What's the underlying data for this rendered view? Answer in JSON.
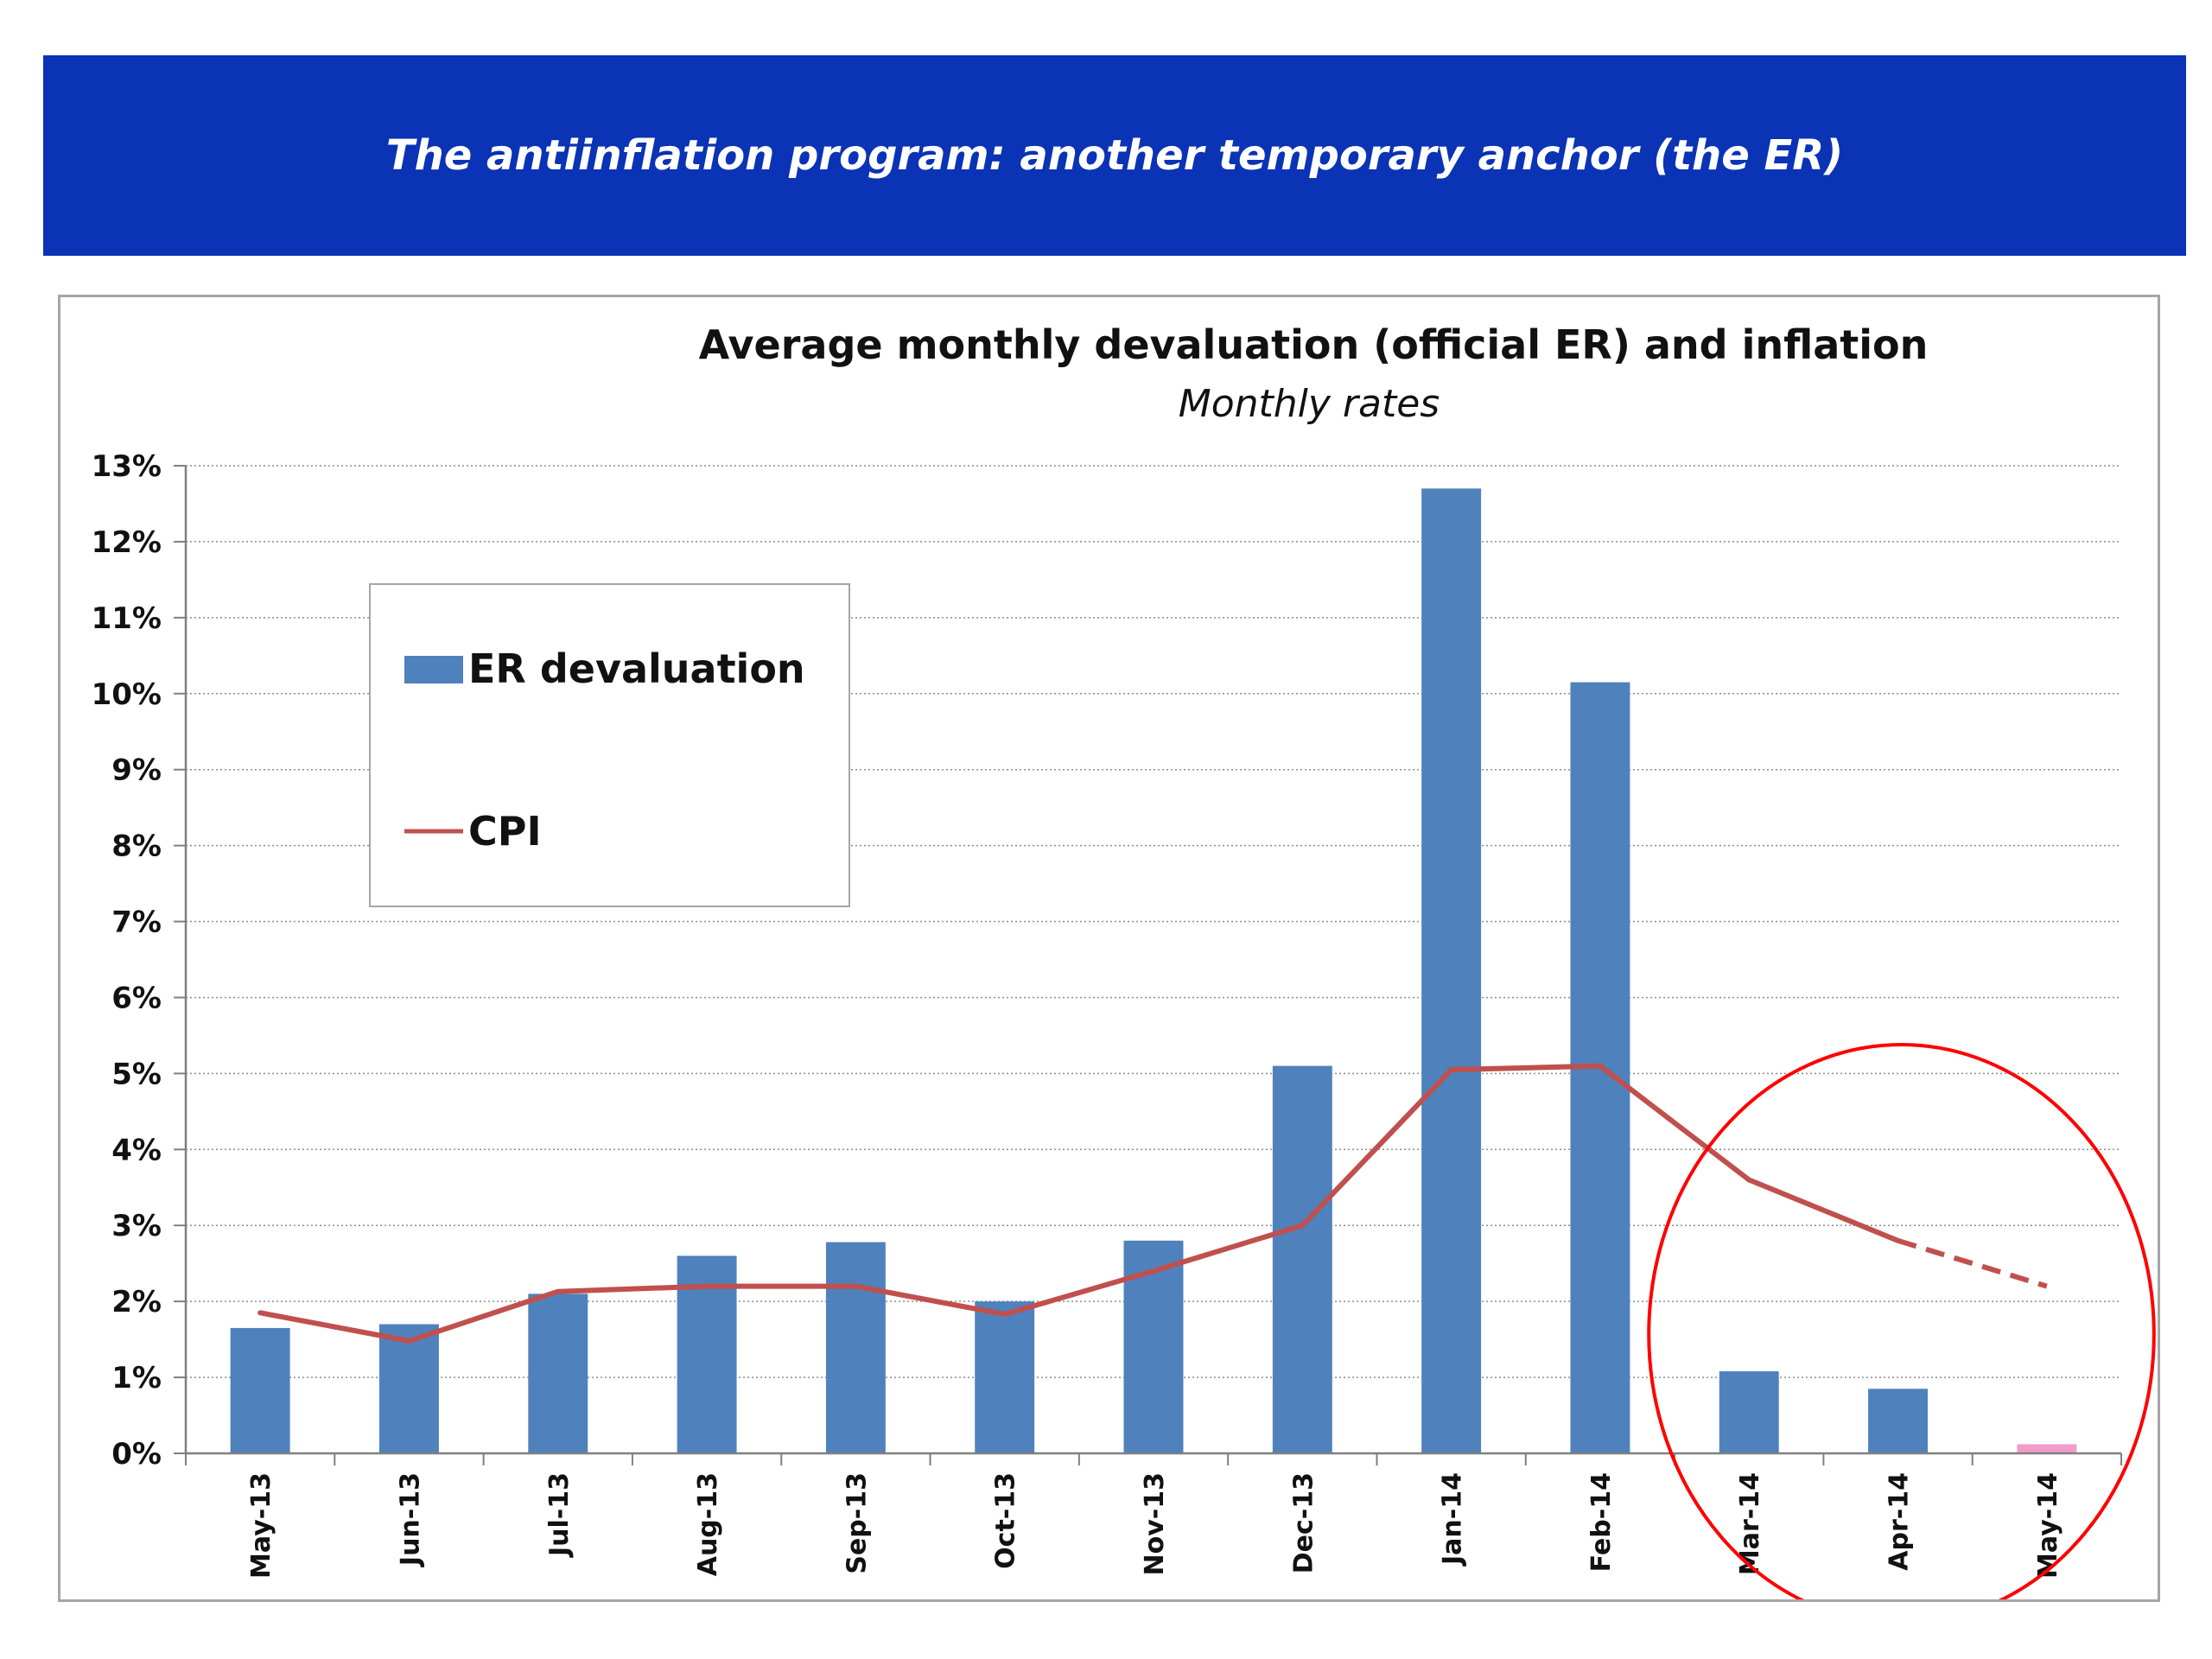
{
  "banner": {
    "title": "The antiinflation program: another temporary  anchor (the ER)",
    "background_color": "#0a33b5",
    "text_color": "#ffffff"
  },
  "chart_data": {
    "type": "bar",
    "title": "Average monthly devaluation (official ER) and inflation",
    "subtitle": "Monthly rates",
    "xlabel": "",
    "ylabel": "",
    "ylim": [
      0,
      0.13
    ],
    "y_ticks": [
      "0%",
      "1%",
      "2%",
      "3%",
      "4%",
      "5%",
      "6%",
      "7%",
      "8%",
      "9%",
      "10%",
      "11%",
      "12%",
      "13%"
    ],
    "grid": true,
    "legend_position": "upper-left",
    "categories": [
      "May-13",
      "Jun-13",
      "Jul-13",
      "Aug-13",
      "Sep-13",
      "Oct-13",
      "Nov-13",
      "Dec-13",
      "Jan-14",
      "Feb-14",
      "Mar-14",
      "Apr-14",
      "May-14"
    ],
    "series": [
      {
        "name": "ER devaluation",
        "type": "bar",
        "color": "#4f81bd",
        "highlight_color": "#f19ccb",
        "highlight_index": 12,
        "values": [
          0.0165,
          0.017,
          0.021,
          0.026,
          0.0278,
          0.02,
          0.028,
          0.051,
          0.127,
          0.1015,
          0.0108,
          0.0085,
          0.0012
        ]
      },
      {
        "name": "CPI",
        "type": "line",
        "color": "#c0504d",
        "values": [
          0.0185,
          0.0148,
          0.0213,
          0.022,
          0.022,
          0.0183,
          0.024,
          0.03,
          0.0505,
          0.051,
          0.036,
          0.028,
          0.022
        ],
        "dashed_from_index": 11
      }
    ],
    "annotations": [
      {
        "type": "ellipse",
        "color": "#ff0000",
        "encloses": [
          "Mar-14",
          "Apr-14",
          "May-14"
        ]
      }
    ]
  }
}
